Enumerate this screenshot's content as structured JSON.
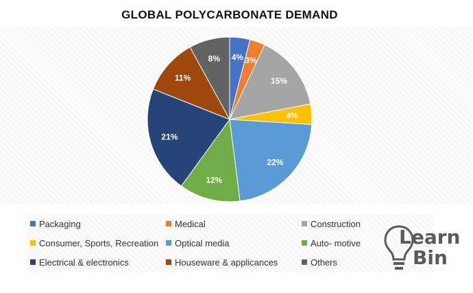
{
  "chart_data": {
    "type": "pie",
    "title": "GLOBAL POLYCARBONATE DEMAND",
    "slices": [
      {
        "label": "Packaging",
        "value": 4,
        "display": "4%",
        "color": "#4472c4"
      },
      {
        "label": "Medical",
        "value": 3,
        "display": "3%",
        "color": "#ed7d31"
      },
      {
        "label": "Construction",
        "value": 15,
        "display": "15%",
        "color": "#a5a5a5"
      },
      {
        "label": "Consumer, Sports, Recreation",
        "value": 4,
        "display": "4%",
        "color": "#ffc000"
      },
      {
        "label": "Optical media",
        "value": 22,
        "display": "22%",
        "color": "#5b9bd5"
      },
      {
        "label": "Auto- motive",
        "value": 12,
        "display": "12%",
        "color": "#70ad47"
      },
      {
        "label": "Electrical & electronics",
        "value": 21,
        "display": "21%",
        "color": "#264478"
      },
      {
        "label": "Houseware & applicances",
        "value": 11,
        "display": "11%",
        "color": "#9e480e"
      },
      {
        "label": "Others",
        "value": 8,
        "display": "8%",
        "color": "#636363"
      }
    ],
    "legend_position": "bottom"
  },
  "logo": {
    "line1": "Learn",
    "line2": "Bin"
  }
}
